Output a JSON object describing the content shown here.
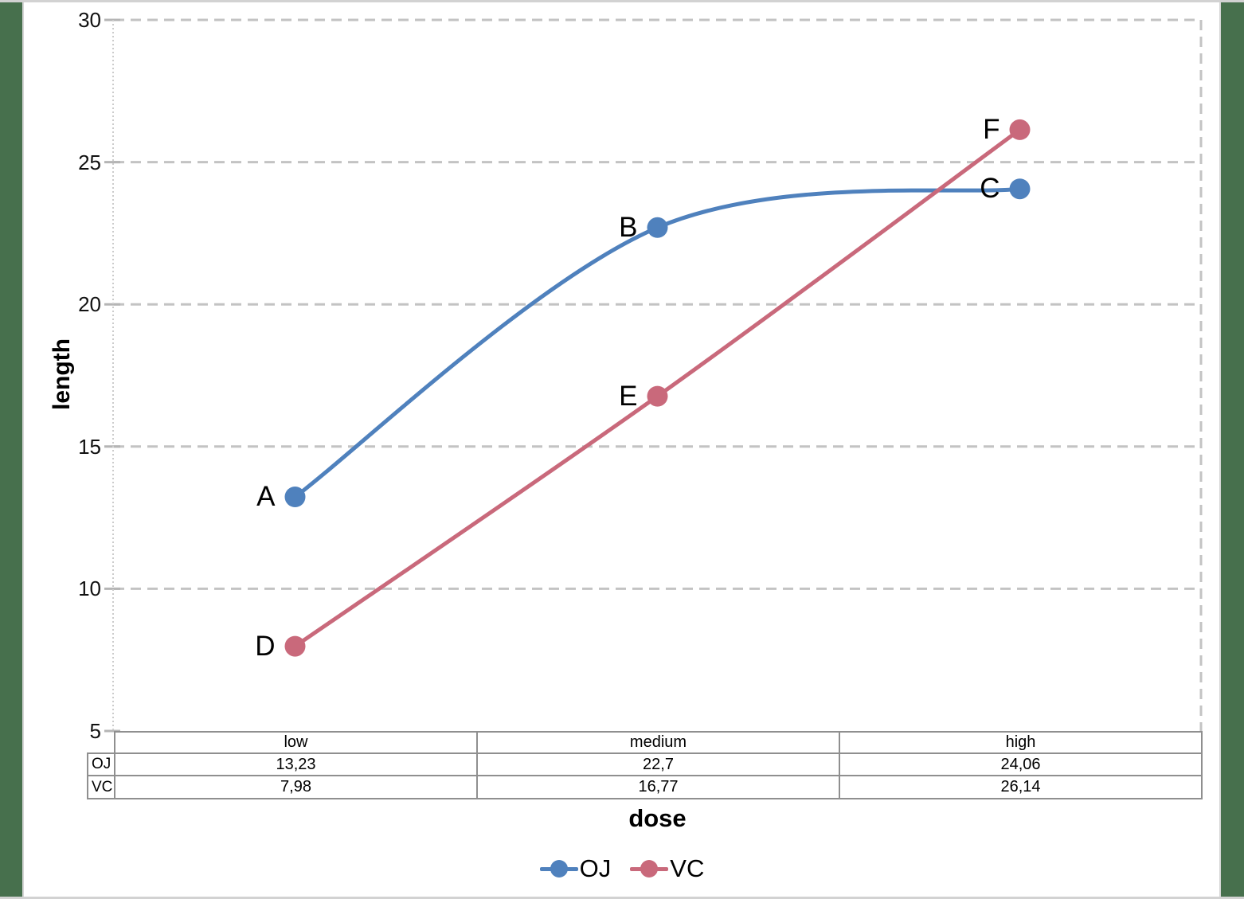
{
  "page": {
    "background_color": "#47704d",
    "canvas_color": "#ffffff"
  },
  "chart_data": {
    "type": "line",
    "title": "",
    "xlabel": "dose",
    "ylabel": "length",
    "categories": [
      "low",
      "medium",
      "high"
    ],
    "series": [
      {
        "name": "OJ",
        "color": "#4f81bd",
        "values": [
          13.23,
          22.7,
          24.06
        ],
        "point_labels": [
          "A",
          "B",
          "C"
        ],
        "smooth": true
      },
      {
        "name": "VC",
        "color": "#c9697b",
        "values": [
          7.98,
          16.77,
          26.14
        ],
        "point_labels": [
          "D",
          "E",
          "F"
        ],
        "smooth": true
      }
    ],
    "ylim": [
      5,
      30
    ],
    "yticks": [
      5,
      10,
      15,
      20,
      25,
      30
    ],
    "grid": "horizontal-dashed",
    "legend_position": "bottom"
  },
  "axis": {
    "x_title": "dose",
    "y_title": "length"
  },
  "table": {
    "header": [
      "low",
      "medium",
      "high"
    ],
    "rows": [
      {
        "label": "OJ",
        "values": [
          "13,23",
          "22,7",
          "24,06"
        ]
      },
      {
        "label": "VC",
        "values": [
          "7,98",
          "16,77",
          "26,14"
        ]
      }
    ]
  },
  "legend": {
    "items": [
      {
        "label": "OJ",
        "color": "#4f81bd"
      },
      {
        "label": "VC",
        "color": "#c9697b"
      }
    ]
  }
}
